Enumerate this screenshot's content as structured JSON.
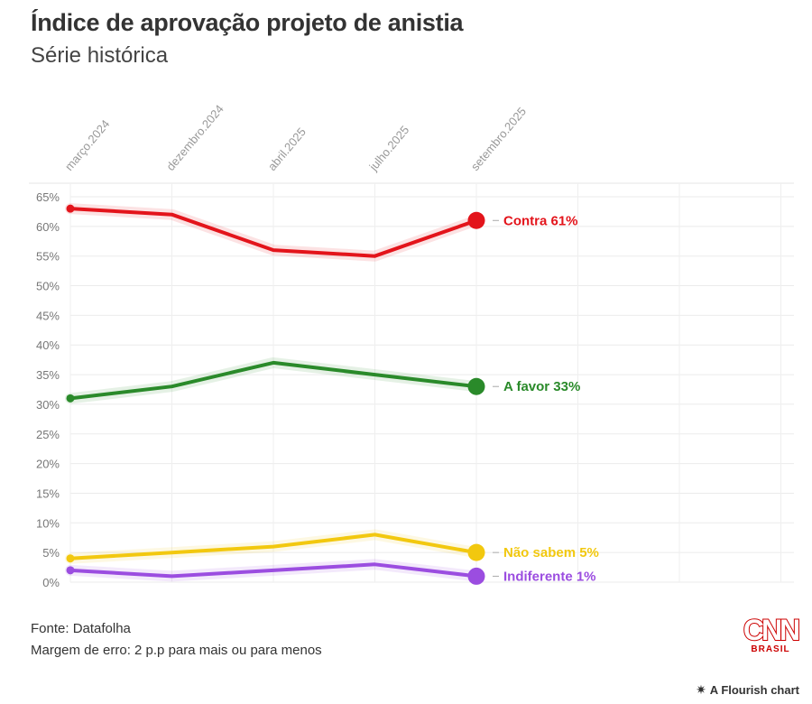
{
  "chart_data": {
    "type": "line",
    "title": "Índice de aprovação projeto de anistia",
    "subtitle": "Série histórica",
    "categories": [
      "março.2024",
      "dezembro.2024",
      "abril.2025",
      "julho.2025",
      "setembro.2025"
    ],
    "y_ticks": [
      "65%",
      "60%",
      "55%",
      "50%",
      "45%",
      "40%",
      "35%",
      "30%",
      "25%",
      "20%",
      "15%",
      "10%",
      "5%",
      "0%"
    ],
    "ylim": [
      0,
      65
    ],
    "series": [
      {
        "name": "Contra",
        "label": "Contra 61%",
        "color": "#e3141b",
        "values": [
          63,
          62,
          56,
          55,
          61
        ]
      },
      {
        "name": "A favor",
        "label": "A favor 33%",
        "color": "#2a8a2a",
        "values": [
          31,
          33,
          37,
          35,
          33
        ]
      },
      {
        "name": "Não sabem",
        "label": "Não sabem 5%",
        "color": "#f2c80f",
        "values": [
          4,
          5,
          6,
          8,
          5
        ]
      },
      {
        "name": "Indiferente",
        "label": "Indiferente 1%",
        "color": "#9b4de0",
        "values": [
          2,
          1,
          2,
          3,
          1
        ]
      }
    ]
  },
  "footer": {
    "source": "Fonte: Datafolha",
    "margin": "Margem de erro: 2 p.p para mais ou para menos"
  },
  "logo": {
    "main": "CNN",
    "sub": "BRASIL"
  },
  "credit": {
    "star": "✷",
    "text": "A Flourish chart"
  }
}
